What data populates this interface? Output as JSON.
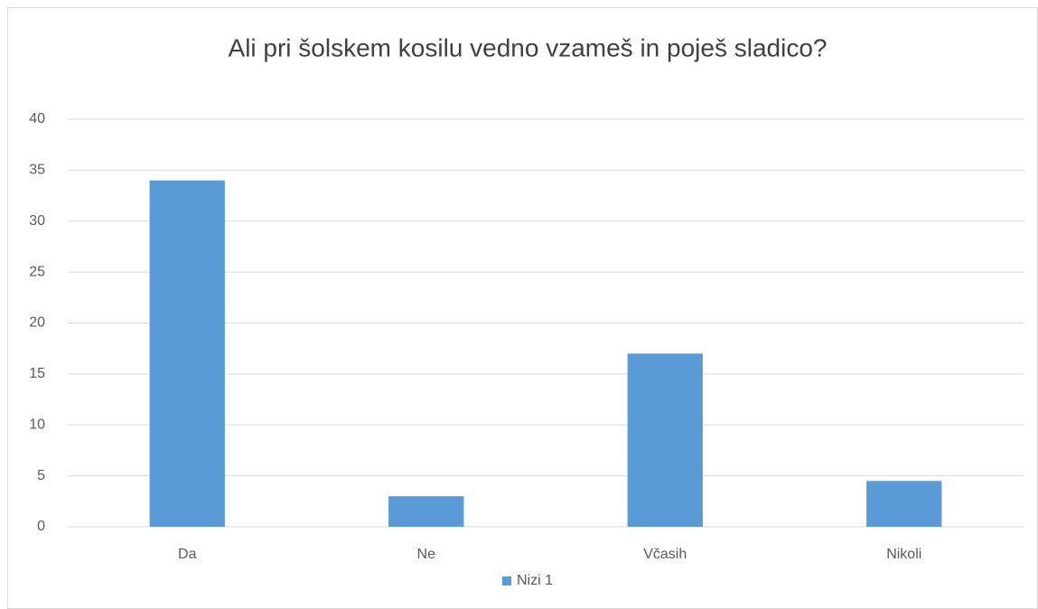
{
  "chart_data": {
    "type": "bar",
    "title": "Ali pri šolskem kosilu vedno vzameš in poješ sladico?",
    "categories": [
      "Da",
      "Ne",
      "Včasih",
      "Nikoli"
    ],
    "series": [
      {
        "name": "Nizi 1",
        "color": "#5b9bd5",
        "values": [
          34,
          3,
          17,
          4.5
        ]
      }
    ],
    "ylim": [
      0,
      40
    ],
    "yticks": [
      0,
      5,
      10,
      15,
      20,
      25,
      30,
      35,
      40
    ],
    "grid": true,
    "legend": "bottom"
  }
}
